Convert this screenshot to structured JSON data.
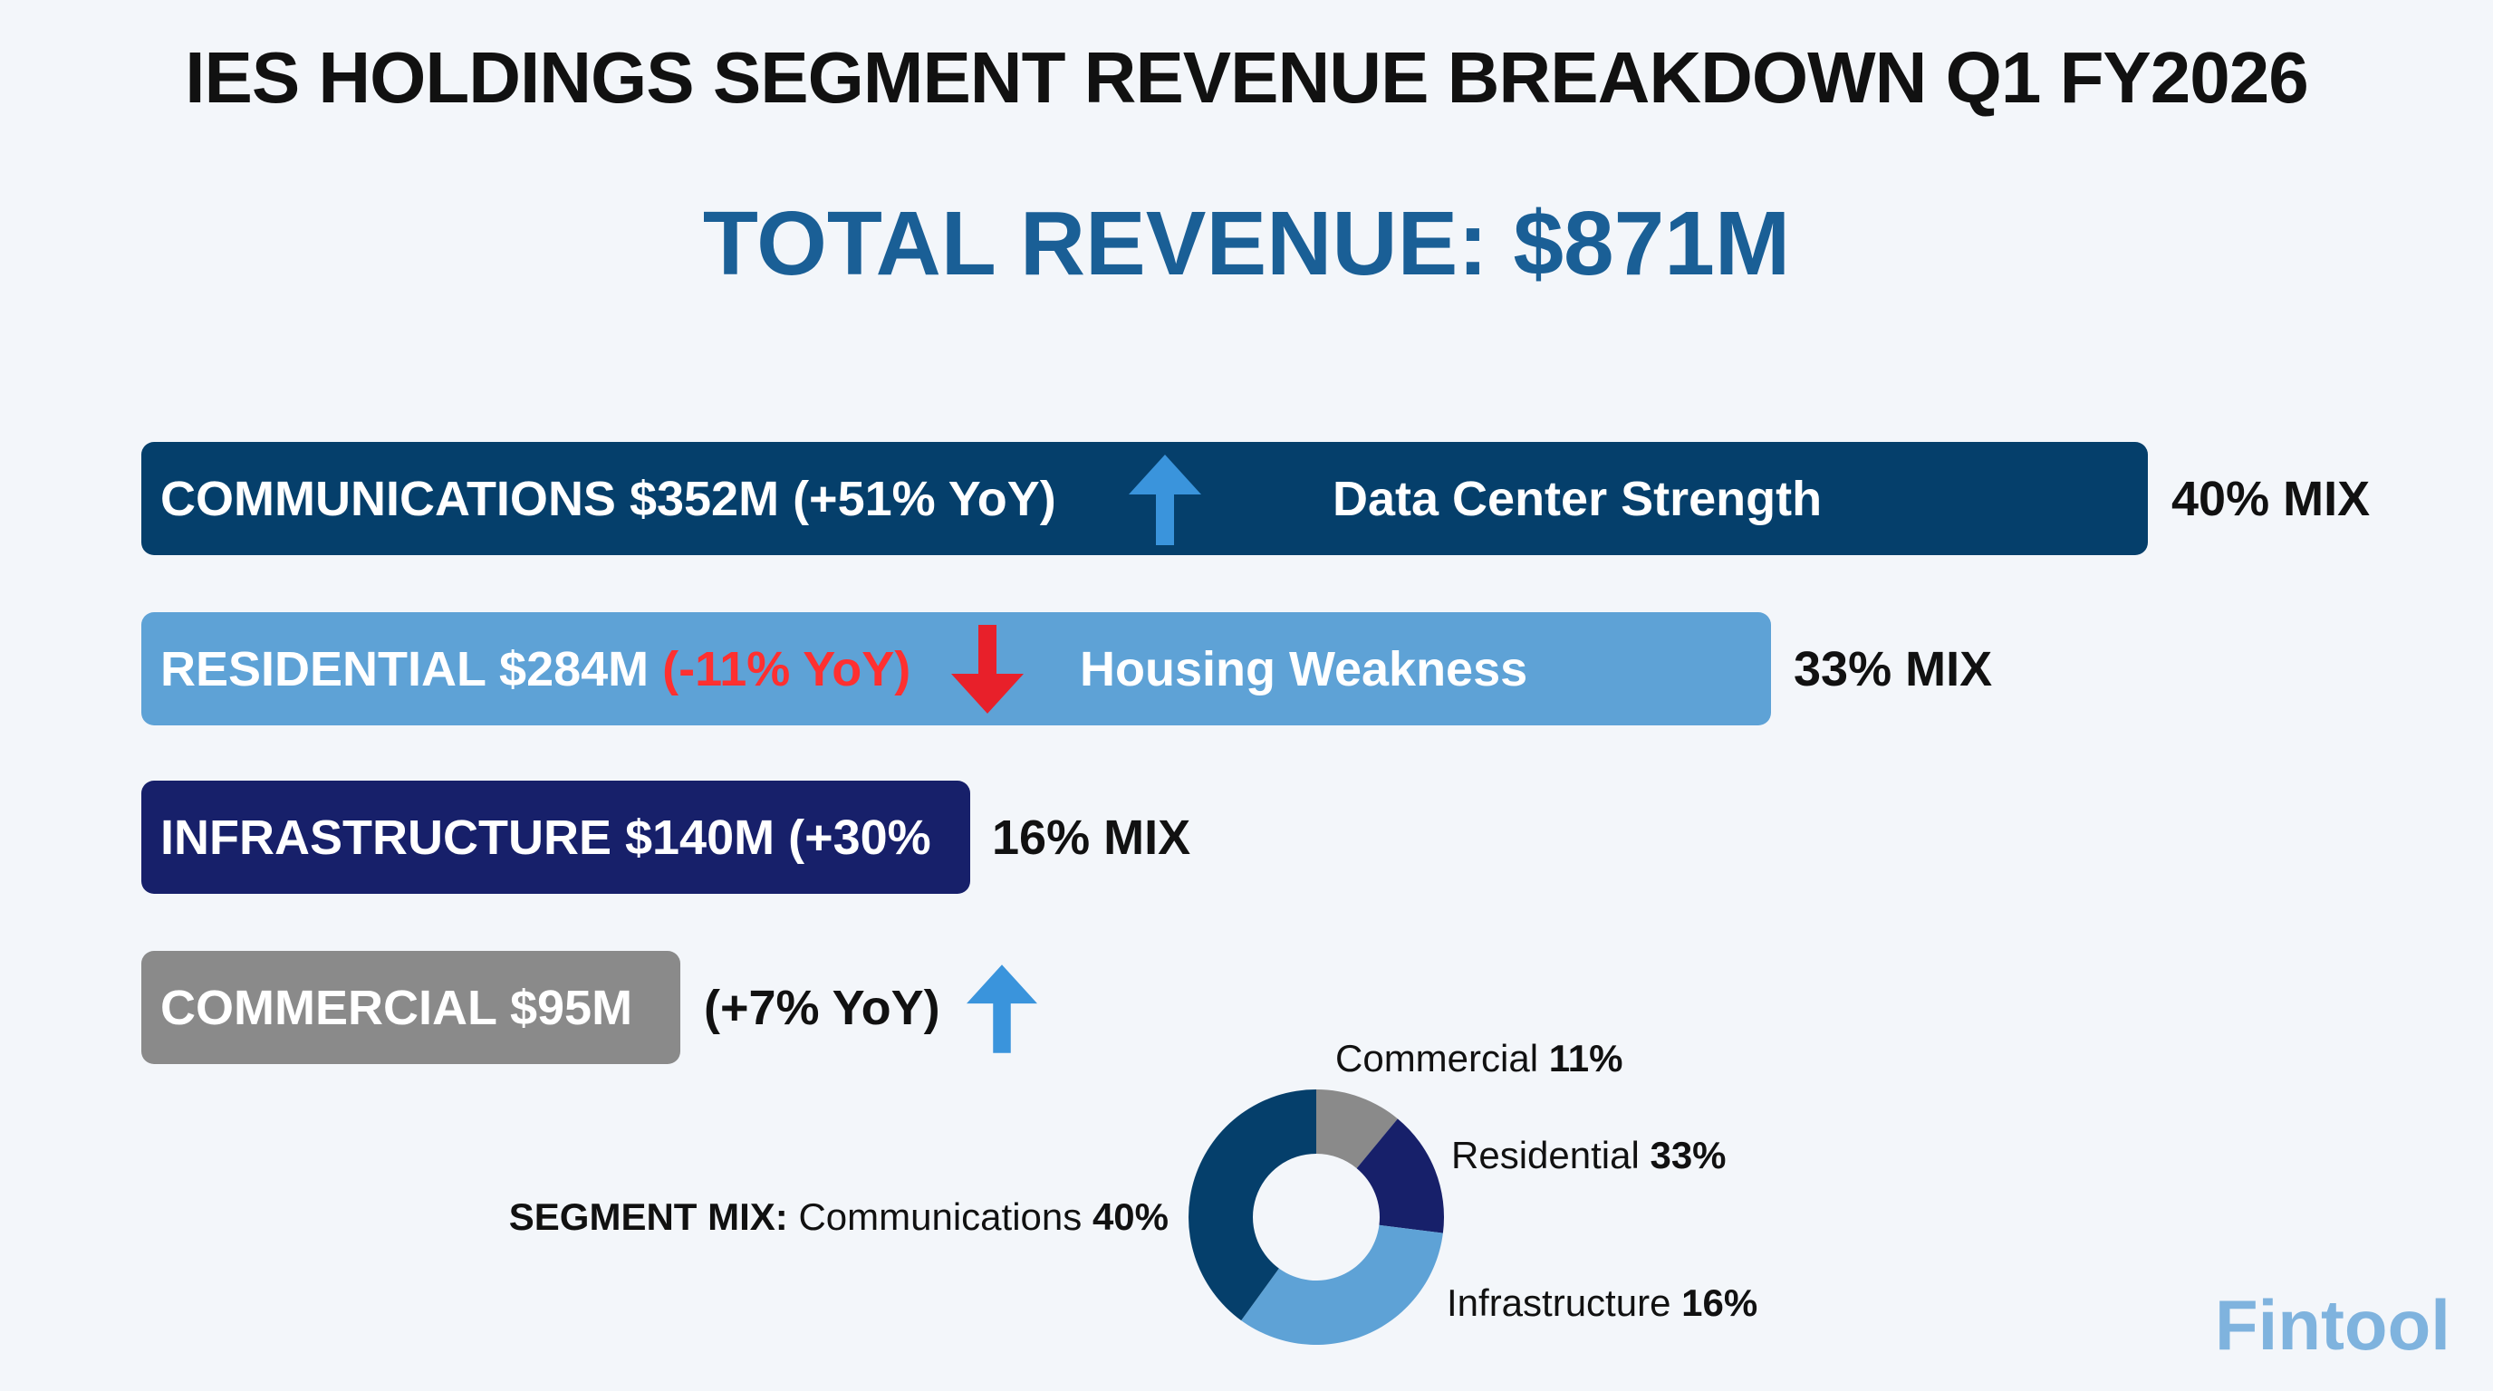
{
  "title": "IES HOLDINGS SEGMENT REVENUE BREAKDOWN Q1 FY2026",
  "total_revenue": "TOTAL REVENUE: $871M",
  "colors": {
    "communications": "#053f6b",
    "residential": "#5ea2d6",
    "infrastructure": "#17206a",
    "commercial": "#8a8a8a",
    "up_arrow": "#3a94dc",
    "down_arrow": "#e8202a",
    "negative_text": "#ff3030",
    "total": "#1a5f96",
    "brand": "#7fb3de"
  },
  "bars": [
    {
      "label": "COMMUNICATIONS $352M (+51% YoY)",
      "note": "Data Center Strength",
      "mix": "40% MIX",
      "trend": "up"
    },
    {
      "label": "RESIDENTIAL $284M",
      "change": "(-11% YoY)",
      "note": "Housing Weakness",
      "mix": "33% MIX",
      "trend": "down"
    },
    {
      "label": "INFRASTRUCTURE $140M (+30%",
      "mix": "16% MIX"
    },
    {
      "label": "COMMERCIAL $95M",
      "change": "(+7% YoY)",
      "trend": "up"
    }
  ],
  "donut": {
    "prefix": "SEGMENT MIX:",
    "labels": [
      {
        "name": "Communications",
        "pct": "40%"
      },
      {
        "name": "Residential",
        "pct": "33%"
      },
      {
        "name": "Infrastructure",
        "pct": "16%"
      },
      {
        "name": "Commercial",
        "pct": "11%"
      }
    ]
  },
  "brand": "Fintool",
  "chart_data": [
    {
      "type": "bar",
      "orientation": "horizontal",
      "categories": [
        "Communications",
        "Residential",
        "Infrastructure",
        "Commercial"
      ],
      "values": [
        352,
        284,
        140,
        95
      ],
      "unit": "$M",
      "yoy_change_pct": [
        51,
        -11,
        30,
        7
      ],
      "mix_pct": [
        40,
        33,
        16,
        11
      ]
    },
    {
      "type": "pie",
      "donut": true,
      "slices_clockwise_from_top": [
        {
          "color": "#8a8a8a",
          "value": 11
        },
        {
          "color": "#17206a",
          "value": 16
        },
        {
          "color": "#5ea2d6",
          "value": 33
        },
        {
          "color": "#053f6b",
          "value": 40
        }
      ]
    }
  ]
}
